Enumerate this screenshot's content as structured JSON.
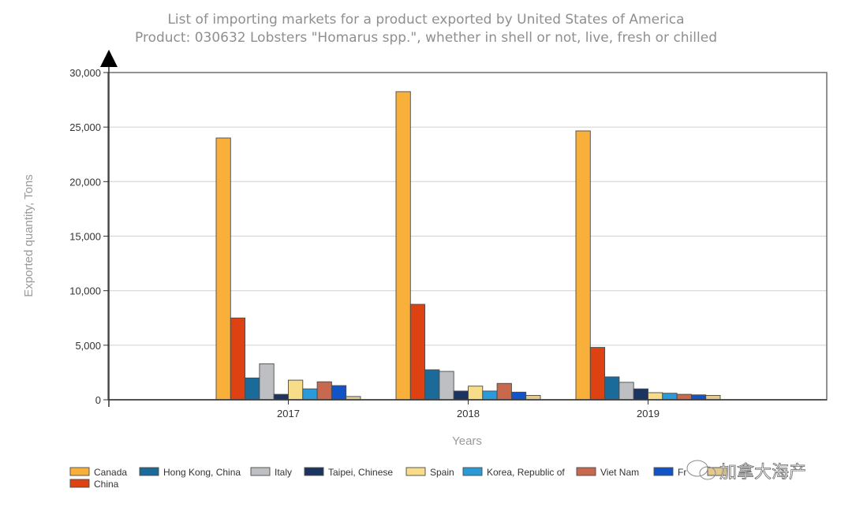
{
  "chart_data": {
    "type": "bar",
    "title": "List of importing markets for a product exported by United States of America",
    "subtitle": "Product: 030632 Lobsters \"Homarus spp.\", whether in shell or not, live, fresh or chilled",
    "xlabel": "Years",
    "ylabel": "Exported quantity, Tons",
    "ylim": [
      0,
      30000
    ],
    "yticks": [
      0,
      5000,
      10000,
      15000,
      20000,
      25000,
      30000
    ],
    "ytick_labels": [
      "0",
      "5,000",
      "10,000",
      "15,000",
      "20,000",
      "25,000",
      "30,000"
    ],
    "grid": true,
    "legend_position": "bottom",
    "categories": [
      "2017",
      "2018",
      "2019"
    ],
    "series": [
      {
        "name": "Canada",
        "color": "#F8B03B",
        "values": [
          24000,
          28250,
          24650
        ]
      },
      {
        "name": "China",
        "color": "#DE4212",
        "values": [
          7500,
          8750,
          4800
        ]
      },
      {
        "name": "Hong Kong, China",
        "color": "#1A6A9A",
        "values": [
          2000,
          2750,
          2100
        ]
      },
      {
        "name": "Italy",
        "color": "#BDBFC2",
        "values": [
          3300,
          2600,
          1600
        ]
      },
      {
        "name": "Taipei, Chinese",
        "color": "#1B3560",
        "values": [
          500,
          800,
          1000
        ]
      },
      {
        "name": "Spain",
        "color": "#F7DC8A",
        "values": [
          1800,
          1250,
          650
        ]
      },
      {
        "name": "Korea, Republic of",
        "color": "#2A9AD8",
        "values": [
          1000,
          800,
          600
        ]
      },
      {
        "name": "Viet Nam",
        "color": "#C8694E",
        "values": [
          1650,
          1500,
          500
        ]
      },
      {
        "name": "Fr",
        "color": "#1254C8",
        "values": [
          1300,
          700,
          450
        ]
      },
      {
        "name": "",
        "color": "#E2C98E",
        "values": [
          300,
          400,
          400
        ]
      }
    ]
  },
  "watermark": "加拿大海产"
}
